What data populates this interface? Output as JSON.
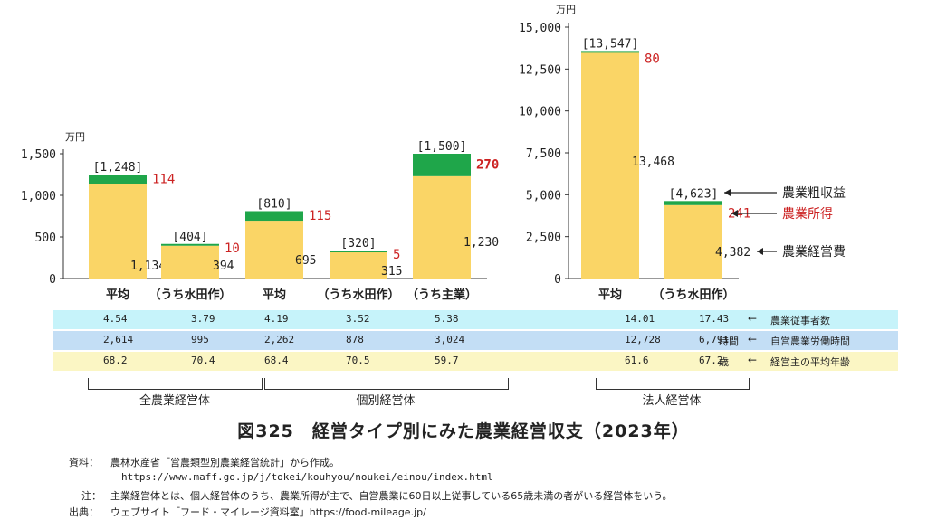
{
  "colors": {
    "expense": "#fad566",
    "income": "#1fa64a",
    "income_text": "#cc2222",
    "axis": "#333333",
    "band1": "#c6f3fa",
    "band2": "#c3def5",
    "band3": "#fbf6c4"
  },
  "chart_data": [
    {
      "type": "bar",
      "unit": "万円",
      "ylim": [
        0,
        1500
      ],
      "yticks": [
        "0",
        "500",
        "1,000",
        "1,500"
      ],
      "categories": [
        "平均",
        "（うち水田作）",
        "平均",
        "（うち水田作）",
        "（うち主業）"
      ],
      "series": [
        {
          "name": "農業経営費",
          "values": [
            1134,
            394,
            695,
            315,
            1230
          ]
        },
        {
          "name": "農業所得",
          "values": [
            114,
            10,
            115,
            5,
            270
          ]
        }
      ],
      "totals": [
        1248,
        404,
        810,
        320,
        1500
      ],
      "total_labels": [
        "[1,248]",
        "[404]",
        "[810]",
        "[320]",
        "[1,500]"
      ],
      "expense_labels": [
        "1,134",
        "394",
        "695",
        "315",
        "1,230"
      ],
      "income_labels": [
        "114",
        "10",
        "115",
        "5",
        "270"
      ]
    },
    {
      "type": "bar",
      "unit": "万円",
      "ylim": [
        0,
        15000
      ],
      "yticks": [
        "0",
        "2,500",
        "5,000",
        "7,500",
        "10,000",
        "12,500",
        "15,000"
      ],
      "categories": [
        "平均",
        "（うち水田作）"
      ],
      "series": [
        {
          "name": "農業経営費",
          "values": [
            13468,
            4382
          ]
        },
        {
          "name": "農業所得",
          "values": [
            80,
            241
          ]
        }
      ],
      "totals": [
        13547,
        4623
      ],
      "total_labels": [
        "[13,547]",
        "[4,623]"
      ],
      "expense_labels": [
        "13,468",
        "4,382"
      ],
      "income_labels": [
        "80",
        "241"
      ]
    }
  ],
  "legend": {
    "gross": "農業粗収益",
    "income": "農業所得",
    "expense": "農業経営費"
  },
  "table": {
    "rows": [
      {
        "label": "農業従事者数",
        "values": [
          "4.54",
          "3.79",
          "4.19",
          "3.52",
          "5.38",
          "14.01",
          "17.43"
        ],
        "unit": ""
      },
      {
        "label": "自営農業労働時間",
        "values": [
          "2,614",
          "995",
          "2,262",
          "878",
          "3,024",
          "12,728",
          "6,791"
        ],
        "unit": "時間"
      },
      {
        "label": "経営主の平均年齢",
        "values": [
          "68.2",
          "70.4",
          "68.4",
          "70.5",
          "59.7",
          "61.6",
          "67.2"
        ],
        "unit": "歳"
      }
    ]
  },
  "groups": [
    "全農業経営体",
    "個別経営体",
    "法人経営体"
  ],
  "title": "図325　経営タイプ別にみた農業経営収支（2023年）",
  "notes": {
    "source_label": "資料：",
    "source": "農林水産省「営農類型別農業経営統計」から作成。",
    "source_url": "https://www.maff.go.jp/j/tokei/kouhyou/noukei/einou/index.html",
    "note_label": "注：",
    "note": "主業経営体とは、個人経営体のうち、農業所得が主で、自営農業に60日以上従事している65歳未満の者がいる経営体をいう。",
    "origin_label": "出典：",
    "origin": "ウェブサイト「フード・マイレージ資料室」https://food-mileage.jp/"
  }
}
